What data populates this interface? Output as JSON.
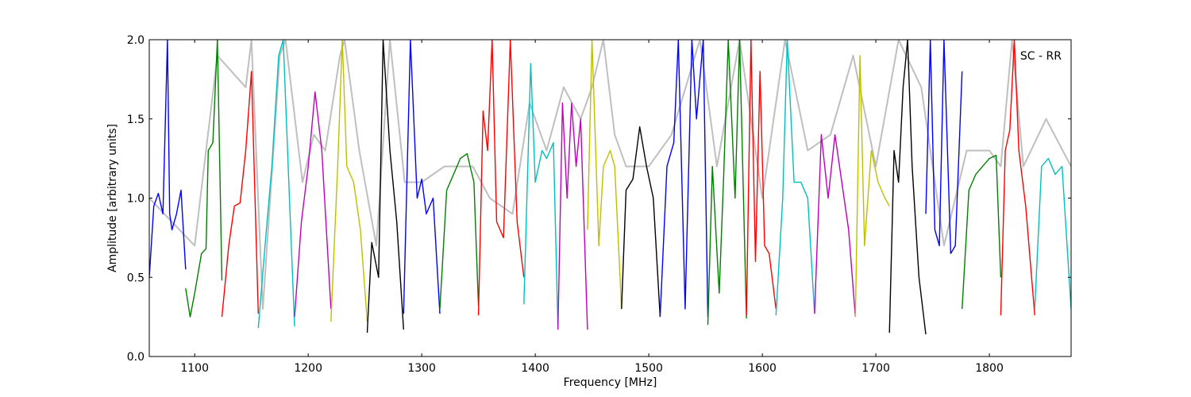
{
  "chart_data": {
    "type": "line",
    "title": "",
    "annotation": "SC - RR",
    "xlabel": "Frequency [MHz]",
    "ylabel": "Amplitude [arbitrary units]",
    "xlim": [
      1060,
      1872
    ],
    "ylim": [
      0.0,
      2.0
    ],
    "x_ticks": [
      1100,
      1200,
      1300,
      1400,
      1500,
      1600,
      1700,
      1800
    ],
    "x_tick_labels": [
      "1100",
      "1200",
      "1300",
      "1400",
      "1500",
      "1600",
      "1700",
      "1800"
    ],
    "y_ticks": [
      0.0,
      0.5,
      1.0,
      1.5,
      2.0
    ],
    "y_tick_labels": [
      "0.0",
      "0.5",
      "1.0",
      "1.5",
      "2.0"
    ],
    "grid": false,
    "background_color": "#c0c0c0",
    "series": [
      {
        "color": "#bfbfbf",
        "x": [
          1060,
          1080,
          1100,
          1120,
          1145,
          1150,
          1160,
          1175,
          1180,
          1195,
          1205,
          1215,
          1228,
          1232,
          1245,
          1260,
          1272,
          1285,
          1300,
          1320,
          1345,
          1360,
          1380,
          1395,
          1410,
          1425,
          1440,
          1450,
          1460,
          1470,
          1480,
          1500,
          1520,
          1545,
          1560,
          1580,
          1600,
          1620,
          1640,
          1660,
          1680,
          1700,
          1720,
          1740,
          1760,
          1780,
          1800,
          1810,
          1820,
          1830,
          1850,
          1872
        ],
        "y": [
          1.0,
          0.85,
          0.7,
          1.9,
          1.7,
          2.0,
          0.3,
          1.9,
          2.0,
          1.1,
          1.4,
          1.3,
          1.9,
          2.0,
          1.3,
          0.7,
          2.0,
          1.1,
          1.1,
          1.2,
          1.2,
          1.0,
          0.9,
          1.6,
          1.3,
          1.7,
          1.5,
          1.7,
          2.0,
          1.4,
          1.2,
          1.2,
          1.4,
          2.0,
          1.2,
          2.0,
          1.0,
          2.0,
          1.3,
          1.4,
          1.9,
          1.2,
          2.0,
          1.7,
          0.7,
          1.3,
          1.3,
          1.2,
          2.0,
          1.2,
          1.5,
          1.2
        ]
      },
      {
        "color": "#0000ff",
        "x": [
          1060,
          1064,
          1068,
          1072,
          1076,
          1078,
          1080,
          1084,
          1088,
          1092
        ],
        "y": [
          0.5,
          0.95,
          1.03,
          0.9,
          2.0,
          0.9,
          0.8,
          0.9,
          1.05,
          0.55
        ]
      },
      {
        "color": "#007f00",
        "x": [
          1092,
          1096,
          1100,
          1106,
          1110,
          1112,
          1116,
          1120,
          1124
        ],
        "y": [
          0.43,
          0.25,
          0.4,
          0.65,
          0.68,
          1.3,
          1.35,
          2.0,
          0.48
        ]
      },
      {
        "color": "#ff0000",
        "x": [
          1124,
          1130,
          1135,
          1140,
          1145,
          1150,
          1156
        ],
        "y": [
          0.25,
          0.7,
          0.95,
          0.97,
          1.3,
          1.8,
          0.27
        ]
      },
      {
        "color": "#00bfbf",
        "x": [
          1156,
          1162,
          1168,
          1174,
          1178,
          1184,
          1188
        ],
        "y": [
          0.18,
          0.7,
          1.2,
          1.9,
          2.0,
          0.9,
          0.19
        ]
      },
      {
        "color": "#bf00bf",
        "x": [
          1188,
          1194,
          1200,
          1206,
          1212,
          1220
        ],
        "y": [
          0.25,
          0.85,
          1.2,
          1.67,
          1.3,
          0.3
        ]
      },
      {
        "color": "#bfbf00",
        "x": [
          1220,
          1226,
          1230,
          1234,
          1240,
          1246,
          1252
        ],
        "y": [
          0.22,
          1.2,
          2.0,
          1.2,
          1.1,
          0.8,
          0.22
        ]
      },
      {
        "color": "#000000",
        "x": [
          1252,
          1256,
          1262,
          1266,
          1272,
          1278,
          1284
        ],
        "y": [
          0.15,
          0.72,
          0.5,
          2.0,
          1.3,
          0.85,
          0.17
        ]
      },
      {
        "color": "#0000ff",
        "x": [
          1284,
          1290,
          1296,
          1300,
          1304,
          1310,
          1316
        ],
        "y": [
          0.27,
          2.0,
          1.0,
          1.12,
          0.9,
          1.0,
          0.27
        ]
      },
      {
        "color": "#007f00",
        "x": [
          1316,
          1322,
          1328,
          1334,
          1340,
          1346,
          1350
        ],
        "y": [
          0.3,
          1.05,
          1.15,
          1.25,
          1.28,
          1.1,
          0.32
        ]
      },
      {
        "color": "#ff0000",
        "x": [
          1350,
          1354,
          1358,
          1362,
          1366,
          1372,
          1378,
          1384,
          1390
        ],
        "y": [
          0.26,
          1.55,
          1.3,
          2.0,
          0.85,
          0.75,
          2.0,
          0.85,
          0.5
        ]
      },
      {
        "color": "#00bfbf",
        "x": [
          1390,
          1396,
          1400,
          1406,
          1410,
          1416,
          1420
        ],
        "y": [
          0.33,
          1.85,
          1.1,
          1.3,
          1.25,
          1.35,
          0.17
        ]
      },
      {
        "color": "#bf00bf",
        "x": [
          1420,
          1424,
          1428,
          1432,
          1436,
          1440,
          1446
        ],
        "y": [
          0.17,
          1.6,
          1.0,
          1.6,
          1.2,
          1.5,
          0.17
        ]
      },
      {
        "color": "#bfbf00",
        "x": [
          1446,
          1450,
          1456,
          1460,
          1466,
          1470,
          1476
        ],
        "y": [
          0.8,
          2.0,
          0.7,
          1.2,
          1.3,
          1.2,
          0.3
        ]
      },
      {
        "color": "#000000",
        "x": [
          1476,
          1480,
          1486,
          1492,
          1498,
          1504,
          1510
        ],
        "y": [
          0.3,
          1.05,
          1.12,
          1.45,
          1.2,
          1.0,
          0.25
        ]
      },
      {
        "color": "#0000ff",
        "x": [
          1510,
          1516,
          1522,
          1526,
          1532,
          1538,
          1542,
          1548,
          1552
        ],
        "y": [
          0.25,
          1.2,
          1.35,
          2.0,
          0.3,
          2.0,
          1.5,
          2.0,
          0.25
        ]
      },
      {
        "color": "#007f00",
        "x": [
          1552,
          1556,
          1562,
          1566,
          1570,
          1576,
          1580,
          1586
        ],
        "y": [
          0.2,
          1.2,
          0.4,
          1.15,
          2.0,
          1.0,
          2.0,
          0.24
        ]
      },
      {
        "color": "#ff0000",
        "x": [
          1586,
          1590,
          1594,
          1598,
          1602,
          1606,
          1612
        ],
        "y": [
          0.26,
          2.0,
          0.6,
          1.8,
          0.7,
          0.65,
          0.3
        ]
      },
      {
        "color": "#00bfbf",
        "x": [
          1612,
          1618,
          1622,
          1628,
          1634,
          1640,
          1646
        ],
        "y": [
          0.26,
          1.0,
          2.0,
          1.1,
          1.1,
          1.0,
          0.27
        ]
      },
      {
        "color": "#bf00bf",
        "x": [
          1646,
          1652,
          1658,
          1664,
          1670,
          1676,
          1682
        ],
        "y": [
          0.27,
          1.4,
          1.0,
          1.4,
          1.1,
          0.8,
          0.25
        ]
      },
      {
        "color": "#bfbf00",
        "x": [
          1682,
          1686,
          1690,
          1696,
          1702,
          1708,
          1712
        ],
        "y": [
          0.25,
          1.9,
          0.7,
          1.3,
          1.1,
          1.0,
          0.95
        ]
      },
      {
        "color": "#000000",
        "x": [
          1712,
          1716,
          1720,
          1724,
          1728,
          1732,
          1738,
          1744
        ],
        "y": [
          0.15,
          1.3,
          1.1,
          1.7,
          2.0,
          1.2,
          0.5,
          0.14
        ]
      },
      {
        "color": "#0000ff",
        "x": [
          1744,
          1748,
          1752,
          1756,
          1760,
          1766,
          1770,
          1776
        ],
        "y": [
          0.9,
          2.0,
          0.8,
          0.7,
          2.0,
          0.65,
          0.7,
          1.8
        ]
      },
      {
        "color": "#007f00",
        "x": [
          1776,
          1782,
          1788,
          1794,
          1800,
          1806,
          1810
        ],
        "y": [
          0.3,
          1.05,
          1.15,
          1.2,
          1.25,
          1.27,
          0.5
        ]
      },
      {
        "color": "#ff0000",
        "x": [
          1810,
          1814,
          1818,
          1822,
          1826,
          1832,
          1840
        ],
        "y": [
          0.26,
          1.3,
          1.43,
          2.0,
          1.3,
          0.95,
          0.26
        ]
      },
      {
        "color": "#00bfbf",
        "x": [
          1840,
          1846,
          1852,
          1858,
          1864,
          1872
        ],
        "y": [
          0.3,
          1.2,
          1.25,
          1.15,
          1.2,
          0.3
        ]
      }
    ]
  }
}
